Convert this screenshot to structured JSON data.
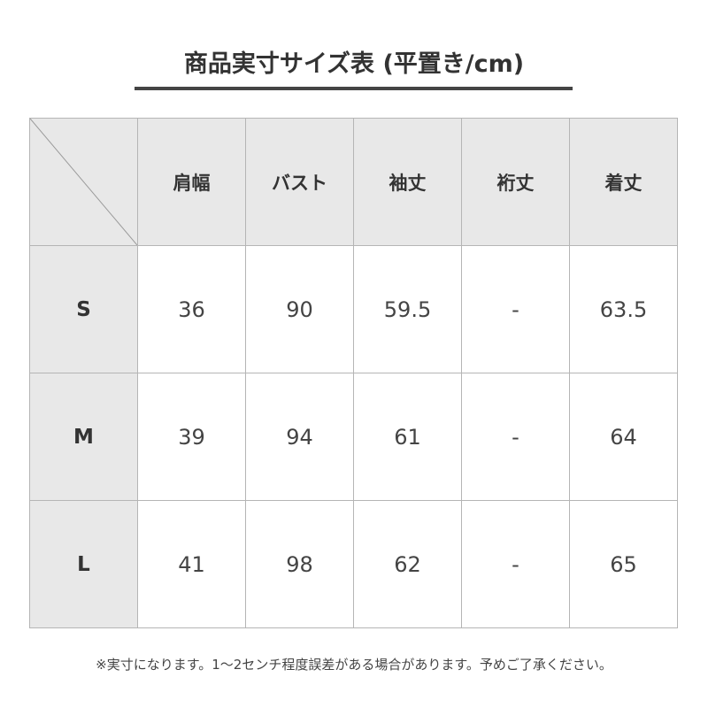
{
  "title": "商品実寸サイズ表 (平置き/cm)",
  "table": {
    "headers": [
      "肩幅",
      "バスト",
      "袖丈",
      "裄丈",
      "着丈"
    ],
    "rows": [
      {
        "size": "S",
        "values": [
          "36",
          "90",
          "59.5",
          "-",
          "63.5"
        ]
      },
      {
        "size": "M",
        "values": [
          "39",
          "94",
          "61",
          "-",
          "64"
        ]
      },
      {
        "size": "L",
        "values": [
          "41",
          "98",
          "62",
          "-",
          "65"
        ]
      }
    ]
  },
  "note": "※実寸になります。1〜2センチ程度誤差がある場合があります。予めご了承ください。",
  "colors": {
    "header_bg": "#e8e8e8",
    "border": "#b5b5b5",
    "text": "#333333"
  }
}
